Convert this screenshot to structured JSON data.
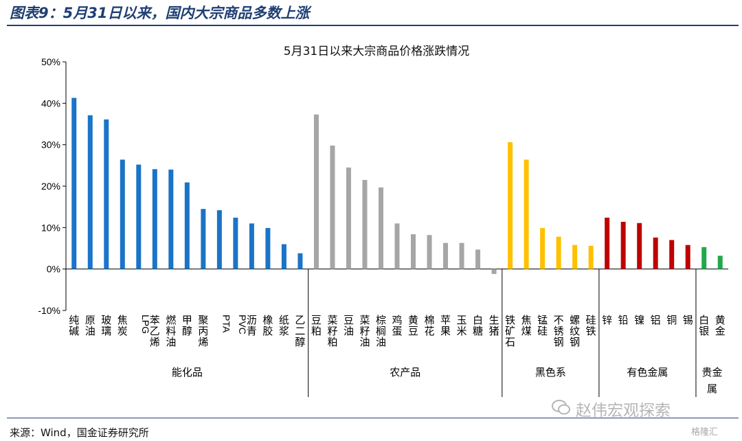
{
  "figure": {
    "title": "图表9：5月31日以来，国内大宗商品多数上涨",
    "source": "来源：Wind，国金证券研究所",
    "watermark": "赵伟宏观探索",
    "logo_text": "格隆汇"
  },
  "chart_data": {
    "type": "bar",
    "title": "5月31日以来大宗商品价格涨跌情况",
    "xlabel": "",
    "ylabel": "",
    "ylim": [
      -10,
      50
    ],
    "yticks": [
      -10,
      0,
      10,
      20,
      30,
      40,
      50
    ],
    "ytick_labels": [
      "-10%",
      "0%",
      "10%",
      "20%",
      "30%",
      "40%",
      "50%"
    ],
    "grid": false,
    "legend": "none",
    "groups": [
      {
        "name": "能化品",
        "color": "#1a74c7",
        "categories": [
          "纯碱",
          "原油",
          "玻璃",
          "焦炭",
          "LPG",
          "苯乙烯",
          "燃料油",
          "甲醇",
          "聚丙烯",
          "PTA",
          "PVC",
          "沥青",
          "橡胶",
          "纸浆",
          "乙二醇"
        ],
        "values": [
          41.3,
          37.1,
          36.1,
          26.4,
          25.2,
          24.1,
          24.0,
          20.9,
          14.5,
          14.2,
          12.4,
          11.0,
          9.9,
          6.0,
          3.8
        ]
      },
      {
        "name": "农产品",
        "color": "#a6a6a6",
        "categories": [
          "豆粕",
          "菜籽粕",
          "豆油",
          "菜籽油",
          "棕榈油",
          "鸡蛋",
          "黄豆",
          "棉花",
          "苹果",
          "玉米",
          "白糖",
          "生猪"
        ],
        "values": [
          37.3,
          29.8,
          24.5,
          21.5,
          19.7,
          11.0,
          8.4,
          8.2,
          6.3,
          6.3,
          4.7,
          -1.2
        ]
      },
      {
        "name": "黑色系",
        "color": "#ffc000",
        "categories": [
          "铁矿石",
          "焦煤",
          "锰硅",
          "不锈钢",
          "螺纹钢",
          "硅铁"
        ],
        "values": [
          30.6,
          26.4,
          9.9,
          7.8,
          5.8,
          5.6
        ]
      },
      {
        "name": "有色金属",
        "color": "#c00000",
        "categories": [
          "锌",
          "铅",
          "镍",
          "铝",
          "铜",
          "锡"
        ],
        "values": [
          12.4,
          11.4,
          11.1,
          7.6,
          7.0,
          5.8
        ]
      },
      {
        "name": "贵金属",
        "color": "#22a84a",
        "categories": [
          "白银",
          "黄金"
        ],
        "values": [
          5.3,
          3.2
        ]
      }
    ]
  }
}
